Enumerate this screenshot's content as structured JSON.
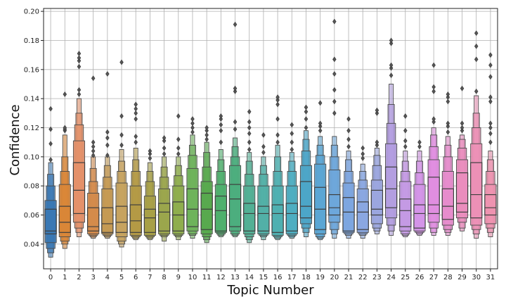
{
  "chart_data": {
    "type": "boxen",
    "xlabel": "Topic Number",
    "ylabel": "Confidence",
    "ylim": [
      0.023,
      0.202
    ],
    "yticks": [
      0.04,
      0.06,
      0.08,
      0.1,
      0.12,
      0.14,
      0.16,
      0.18,
      0.2
    ],
    "ytick_labels": [
      "0.04",
      "0.06",
      "0.08",
      "0.10",
      "0.12",
      "0.14",
      "0.16",
      "0.18",
      "0.20"
    ],
    "grid": true,
    "categories": [
      "0",
      "1",
      "2",
      "3",
      "4",
      "5",
      "6",
      "7",
      "8",
      "9",
      "10",
      "11",
      "12",
      "13",
      "14",
      "15",
      "16",
      "17",
      "18",
      "19",
      "20",
      "21",
      "22",
      "23",
      "24",
      "25",
      "26",
      "27",
      "28",
      "29",
      "30",
      "31"
    ],
    "colors": [
      "#3a78b4",
      "#d98637",
      "#e4916a",
      "#d48b4b",
      "#c59a53",
      "#c7a35f",
      "#b49a45",
      "#a8a046",
      "#9ba64c",
      "#8fae4d",
      "#6eb35b",
      "#58a94e",
      "#4fb06d",
      "#4cae7e",
      "#53b095",
      "#52b0a7",
      "#4fb0b1",
      "#4eaec1",
      "#4ca6c8",
      "#5ba6d4",
      "#6da7db",
      "#7da6e0",
      "#8aa7e1",
      "#9ba6df",
      "#b39ee0",
      "#c49ae4",
      "#d494e8",
      "#e08ee0",
      "#e68ccc",
      "#ea8dbd",
      "#ec90b6",
      "#ee93b0"
    ],
    "boxes": [
      {
        "q1": 0.047,
        "median": 0.049,
        "q3": 0.064,
        "levels": [
          [
            0.041,
            0.07
          ],
          [
            0.037,
            0.08
          ],
          [
            0.034,
            0.088
          ],
          [
            0.031,
            0.096
          ]
        ],
        "outliers": [
          0.098,
          0.109,
          0.119,
          0.133
        ]
      },
      {
        "q1": 0.048,
        "median": 0.055,
        "q3": 0.066,
        "levels": [
          [
            0.045,
            0.081
          ],
          [
            0.042,
            0.09
          ],
          [
            0.04,
            0.1
          ],
          [
            0.037,
            0.115
          ]
        ],
        "outliers": [
          0.118,
          0.119,
          0.12,
          0.143
        ]
      },
      {
        "q1": 0.061,
        "median": 0.077,
        "q3": 0.096,
        "levels": [
          [
            0.055,
            0.111
          ],
          [
            0.051,
            0.122
          ],
          [
            0.048,
            0.13
          ],
          [
            0.045,
            0.14
          ]
        ],
        "outliers": [
          0.143,
          0.146,
          0.162,
          0.166,
          0.168,
          0.171
        ]
      },
      {
        "q1": 0.049,
        "median": 0.052,
        "q3": 0.065,
        "levels": [
          [
            0.047,
            0.075
          ],
          [
            0.046,
            0.083
          ],
          [
            0.045,
            0.092
          ],
          [
            0.044,
            0.1
          ]
        ],
        "outliers": [
          0.101,
          0.104,
          0.107,
          0.11,
          0.154
        ]
      },
      {
        "q1": 0.048,
        "median": 0.054,
        "q3": 0.065,
        "levels": [
          [
            0.047,
            0.078
          ],
          [
            0.046,
            0.086
          ],
          [
            0.045,
            0.094
          ],
          [
            0.044,
            0.1
          ]
        ],
        "outliers": [
          0.101,
          0.108,
          0.113,
          0.117,
          0.157
        ]
      },
      {
        "q1": 0.048,
        "median": 0.055,
        "q3": 0.066,
        "levels": [
          [
            0.045,
            0.082
          ],
          [
            0.042,
            0.09
          ],
          [
            0.04,
            0.097
          ],
          [
            0.038,
            0.105
          ]
        ],
        "outliers": [
          0.108,
          0.115,
          0.128,
          0.165
        ]
      },
      {
        "q1": 0.048,
        "median": 0.056,
        "q3": 0.067,
        "levels": [
          [
            0.046,
            0.08
          ],
          [
            0.045,
            0.09
          ],
          [
            0.044,
            0.098
          ],
          [
            0.043,
            0.106
          ]
        ],
        "outliers": [
          0.11,
          0.114,
          0.126,
          0.13,
          0.133,
          0.136
        ]
      },
      {
        "q1": 0.048,
        "median": 0.058,
        "q3": 0.064,
        "levels": [
          [
            0.046,
            0.073
          ],
          [
            0.045,
            0.083
          ],
          [
            0.044,
            0.09
          ],
          [
            0.043,
            0.096
          ]
        ],
        "outliers": [
          0.099,
          0.102,
          0.104
        ]
      },
      {
        "q1": 0.049,
        "median": 0.062,
        "q3": 0.068,
        "levels": [
          [
            0.047,
            0.078
          ],
          [
            0.046,
            0.086
          ],
          [
            0.045,
            0.093
          ],
          [
            0.042,
            0.1
          ]
        ],
        "outliers": [
          0.102,
          0.106,
          0.111,
          0.113
        ]
      },
      {
        "q1": 0.049,
        "median": 0.06,
        "q3": 0.069,
        "levels": [
          [
            0.047,
            0.08
          ],
          [
            0.046,
            0.087
          ],
          [
            0.045,
            0.094
          ],
          [
            0.043,
            0.1
          ]
        ],
        "outliers": [
          0.102,
          0.106,
          0.112,
          0.128
        ]
      },
      {
        "q1": 0.052,
        "median": 0.064,
        "q3": 0.078,
        "levels": [
          [
            0.049,
            0.092
          ],
          [
            0.047,
            0.101
          ],
          [
            0.046,
            0.108
          ],
          [
            0.044,
            0.115
          ]
        ],
        "outliers": [
          0.117,
          0.12,
          0.123,
          0.126
        ]
      },
      {
        "q1": 0.05,
        "median": 0.064,
        "q3": 0.075,
        "levels": [
          [
            0.047,
            0.083
          ],
          [
            0.045,
            0.093
          ],
          [
            0.043,
            0.103
          ],
          [
            0.041,
            0.11
          ]
        ],
        "outliers": [
          0.112,
          0.115,
          0.118,
          0.12
        ]
      },
      {
        "q1": 0.049,
        "median": 0.063,
        "q3": 0.073,
        "levels": [
          [
            0.048,
            0.081
          ],
          [
            0.047,
            0.09
          ],
          [
            0.046,
            0.098
          ],
          [
            0.045,
            0.105
          ]
        ],
        "outliers": [
          0.11,
          0.118,
          0.122,
          0.126,
          0.128
        ]
      },
      {
        "q1": 0.052,
        "median": 0.071,
        "q3": 0.081,
        "levels": [
          [
            0.049,
            0.094
          ],
          [
            0.047,
            0.1
          ],
          [
            0.046,
            0.107
          ],
          [
            0.045,
            0.113
          ]
        ],
        "outliers": [
          0.119,
          0.124,
          0.145,
          0.147,
          0.191
        ]
      },
      {
        "q1": 0.049,
        "median": 0.061,
        "q3": 0.068,
        "levels": [
          [
            0.047,
            0.08
          ],
          [
            0.045,
            0.088
          ],
          [
            0.043,
            0.097
          ],
          [
            0.041,
            0.103
          ]
        ],
        "outliers": [
          0.105,
          0.11,
          0.116,
          0.12,
          0.124,
          0.131
        ]
      },
      {
        "q1": 0.049,
        "median": 0.061,
        "q3": 0.066,
        "levels": [
          [
            0.047,
            0.08
          ],
          [
            0.046,
            0.088
          ],
          [
            0.045,
            0.094
          ],
          [
            0.043,
            0.1
          ]
        ],
        "outliers": [
          0.103,
          0.107,
          0.115
        ]
      },
      {
        "q1": 0.048,
        "median": 0.061,
        "q3": 0.067,
        "levels": [
          [
            0.046,
            0.08
          ],
          [
            0.045,
            0.09
          ],
          [
            0.044,
            0.1
          ],
          [
            0.043,
            0.108
          ]
        ],
        "outliers": [
          0.11,
          0.115,
          0.126,
          0.136,
          0.139,
          0.141
        ]
      },
      {
        "q1": 0.049,
        "median": 0.061,
        "q3": 0.068,
        "levels": [
          [
            0.047,
            0.08
          ],
          [
            0.046,
            0.09
          ],
          [
            0.045,
            0.097
          ],
          [
            0.044,
            0.103
          ]
        ],
        "outliers": [
          0.105,
          0.11,
          0.116,
          0.122
        ]
      },
      {
        "q1": 0.058,
        "median": 0.066,
        "q3": 0.083,
        "levels": [
          [
            0.054,
            0.094
          ],
          [
            0.051,
            0.104
          ],
          [
            0.048,
            0.112
          ],
          [
            0.045,
            0.118
          ]
        ],
        "outliers": [
          0.12,
          0.126,
          0.131,
          0.134
        ]
      },
      {
        "q1": 0.05,
        "median": 0.064,
        "q3": 0.079,
        "levels": [
          [
            0.047,
            0.095
          ],
          [
            0.045,
            0.101
          ],
          [
            0.044,
            0.108
          ],
          [
            0.043,
            0.114
          ]
        ],
        "outliers": [
          0.118,
          0.121,
          0.123,
          0.137
        ]
      },
      {
        "q1": 0.06,
        "median": 0.065,
        "q3": 0.074,
        "levels": [
          [
            0.055,
            0.091
          ],
          [
            0.05,
            0.1
          ],
          [
            0.047,
            0.108
          ],
          [
            0.044,
            0.114
          ]
        ],
        "outliers": [
          0.13,
          0.138,
          0.146,
          0.157,
          0.167,
          0.193
        ]
      },
      {
        "q1": 0.049,
        "median": 0.062,
        "q3": 0.072,
        "levels": [
          [
            0.048,
            0.082
          ],
          [
            0.047,
            0.09
          ],
          [
            0.046,
            0.098
          ],
          [
            0.044,
            0.104
          ]
        ],
        "outliers": [
          0.107,
          0.112,
          0.118,
          0.126
        ]
      },
      {
        "q1": 0.05,
        "median": 0.062,
        "q3": 0.069,
        "levels": [
          [
            0.048,
            0.078
          ],
          [
            0.047,
            0.084
          ],
          [
            0.046,
            0.09
          ],
          [
            0.044,
            0.095
          ]
        ],
        "outliers": [
          0.099,
          0.102,
          0.106
        ]
      },
      {
        "q1": 0.06,
        "median": 0.064,
        "q3": 0.077,
        "levels": [
          [
            0.054,
            0.084
          ],
          [
            0.051,
            0.094
          ],
          [
            0.049,
            0.101
          ],
          [
            0.047,
            0.106
          ]
        ],
        "outliers": [
          0.108,
          0.11,
          0.13,
          0.132
        ]
      },
      {
        "q1": 0.065,
        "median": 0.078,
        "q3": 0.093,
        "levels": [
          [
            0.058,
            0.109
          ],
          [
            0.053,
            0.123
          ],
          [
            0.049,
            0.136
          ],
          [
            0.046,
            0.15
          ]
        ],
        "outliers": [
          0.156,
          0.161,
          0.163,
          0.178,
          0.18
        ]
      },
      {
        "q1": 0.052,
        "median": 0.063,
        "q3": 0.071,
        "levels": [
          [
            0.049,
            0.083
          ],
          [
            0.047,
            0.09
          ],
          [
            0.046,
            0.097
          ],
          [
            0.045,
            0.104
          ]
        ],
        "outliers": [
          0.107,
          0.111,
          0.118,
          0.128
        ]
      },
      {
        "q1": 0.051,
        "median": 0.061,
        "q3": 0.067,
        "levels": [
          [
            0.049,
            0.081
          ],
          [
            0.048,
            0.089
          ],
          [
            0.047,
            0.097
          ],
          [
            0.046,
            0.104
          ]
        ],
        "outliers": [
          0.107,
          0.11
        ]
      },
      {
        "q1": 0.061,
        "median": 0.067,
        "q3": 0.086,
        "levels": [
          [
            0.055,
            0.098
          ],
          [
            0.051,
            0.107
          ],
          [
            0.048,
            0.115
          ],
          [
            0.046,
            0.12
          ]
        ],
        "outliers": [
          0.124,
          0.126,
          0.145,
          0.148,
          0.163
        ]
      },
      {
        "q1": 0.057,
        "median": 0.066,
        "q3": 0.078,
        "levels": [
          [
            0.053,
            0.09
          ],
          [
            0.05,
            0.1
          ],
          [
            0.048,
            0.108
          ],
          [
            0.046,
            0.114
          ]
        ],
        "outliers": [
          0.117,
          0.121,
          0.123,
          0.138,
          0.141,
          0.143
        ]
      },
      {
        "q1": 0.062,
        "median": 0.068,
        "q3": 0.089,
        "levels": [
          [
            0.058,
            0.098
          ],
          [
            0.055,
            0.106
          ],
          [
            0.051,
            0.112
          ],
          [
            0.049,
            0.115
          ]
        ],
        "outliers": [
          0.118,
          0.12,
          0.123,
          0.147
        ]
      },
      {
        "q1": 0.058,
        "median": 0.074,
        "q3": 0.096,
        "levels": [
          [
            0.053,
            0.109
          ],
          [
            0.05,
            0.12
          ],
          [
            0.047,
            0.13
          ],
          [
            0.044,
            0.142
          ]
        ],
        "outliers": [
          0.145,
          0.167,
          0.176,
          0.185
        ]
      },
      {
        "q1": 0.06,
        "median": 0.065,
        "q3": 0.074,
        "levels": [
          [
            0.054,
            0.081
          ],
          [
            0.051,
            0.09
          ],
          [
            0.048,
            0.098
          ],
          [
            0.045,
            0.104
          ]
        ],
        "outliers": [
          0.11,
          0.116,
          0.12,
          0.123,
          0.138,
          0.141,
          0.155,
          0.163,
          0.17
        ]
      }
    ]
  }
}
